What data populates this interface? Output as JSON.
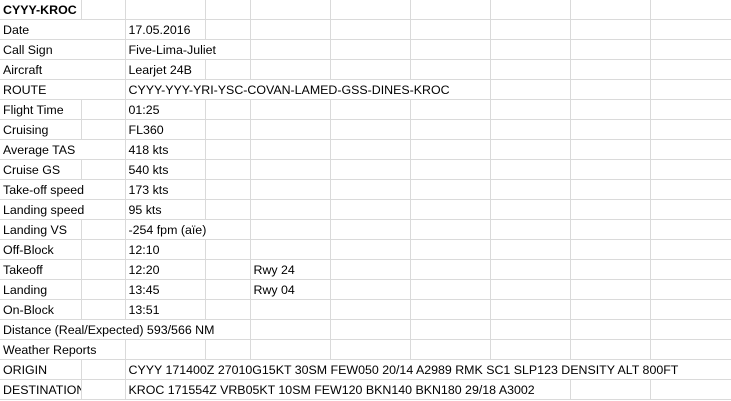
{
  "sheet": {
    "title": "CYYY-KROC",
    "rows": [
      {
        "label": "Date",
        "value": "17.05.2016"
      },
      {
        "label": "Call Sign",
        "value": "Five-Lima-Juliet"
      },
      {
        "label": "Aircraft",
        "value": "Learjet 24B"
      },
      {
        "label": "ROUTE",
        "value": "CYYY-YYY-YRI-YSC-COVAN-LAMED-GSS-DINES-KROC"
      },
      {
        "label": "Flight Time",
        "value": "01:25"
      },
      {
        "label": "Cruising",
        "value": "FL360"
      },
      {
        "label": "Average TAS",
        "value": "418 kts"
      },
      {
        "label": "Cruise GS",
        "value": "540 kts"
      },
      {
        "label": "Take-off speed",
        "value": "173 kts"
      },
      {
        "label": "Landing speed",
        "value": "95 kts"
      },
      {
        "label": "Landing VS",
        "value": "-254 fpm (aïe)"
      },
      {
        "label": "Off-Block",
        "value": "12:10"
      },
      {
        "label": "Takeoff",
        "value": "12:20",
        "runway": "Rwy 24"
      },
      {
        "label": "Landing",
        "value": "13:45",
        "runway": "Rwy 04"
      },
      {
        "label": "On-Block",
        "value": "13:51"
      },
      {
        "label": "Distance (Real/Expected) 593/566 NM"
      },
      {
        "label": "Weather Reports"
      },
      {
        "label": "ORIGIN",
        "value": "CYYY 171400Z 27010G15KT 30SM FEW050 20/14 A2989 RMK SC1 SLP123 DENSITY ALT 800FT"
      },
      {
        "label": "DESTINATION",
        "value": "KROC 171554Z VRB05KT 10SM FEW120 BKN140 BKN180 29/18 A3002"
      }
    ]
  }
}
